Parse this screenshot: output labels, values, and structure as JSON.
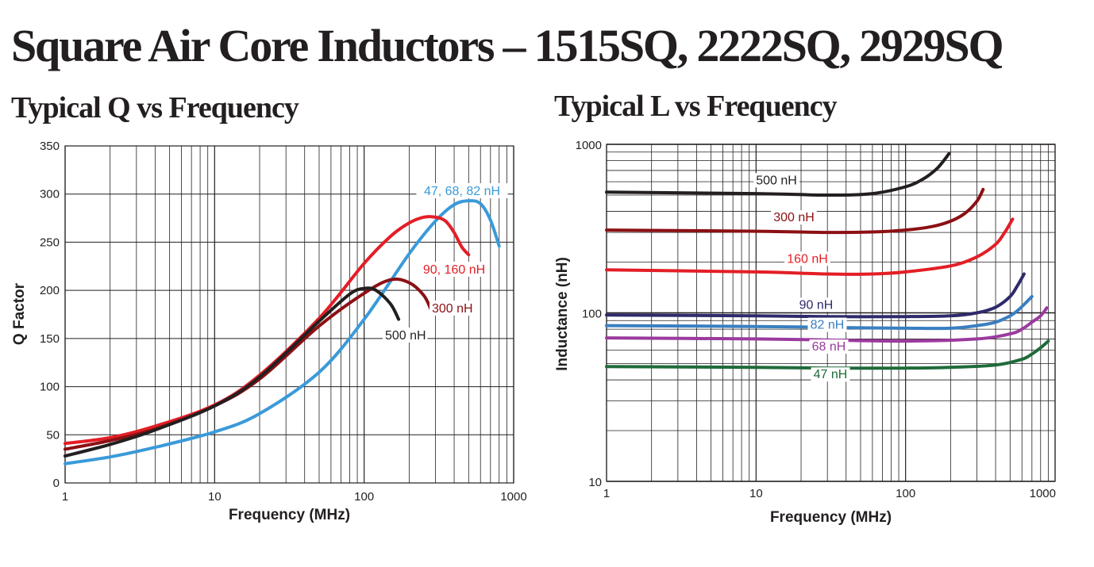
{
  "page": {
    "title": "Square Air Core Inductors – 1515SQ, 2222SQ, 2929SQ",
    "q_title": "Typical Q vs Frequency",
    "l_title": "Typical L vs Frequency"
  },
  "chart_data": [
    {
      "type": "line",
      "title": "Typical Q vs Frequency",
      "xlabel": "Frequency (MHz)",
      "ylabel": "Q Factor",
      "xscale": "log",
      "xlim": [
        1,
        1000
      ],
      "ylim": [
        0,
        350
      ],
      "xticks": [
        "1",
        "10",
        "100",
        "1000"
      ],
      "yticks": [
        "0",
        "50",
        "100",
        "150",
        "200",
        "250",
        "300",
        "350"
      ],
      "grid": true,
      "series": [
        {
          "name": "47, 68, 82 nH",
          "color": "#3a9ad9",
          "x": [
            1,
            2,
            4,
            10,
            20,
            50,
            100,
            200,
            300,
            400,
            500,
            600,
            700,
            800
          ],
          "y": [
            20,
            27,
            37,
            53,
            72,
            115,
            170,
            238,
            272,
            289,
            293,
            290,
            273,
            246
          ]
        },
        {
          "name": "90, 160 nH",
          "color": "#e31e26",
          "x": [
            1,
            2,
            4,
            10,
            20,
            50,
            100,
            150,
            200,
            250,
            300,
            350,
            400,
            450,
            500
          ],
          "y": [
            41,
            47,
            59,
            81,
            112,
            171,
            228,
            256,
            270,
            276,
            276,
            272,
            260,
            245,
            237
          ]
        },
        {
          "name": "300 nH",
          "color": "#8b1014",
          "x": [
            1,
            2,
            4,
            10,
            20,
            50,
            100,
            150,
            200,
            250,
            280
          ],
          "y": [
            35,
            44,
            56,
            80,
            108,
            163,
            197,
            211,
            208,
            195,
            180
          ]
        },
        {
          "name": "500 nH",
          "color": "#231f20",
          "x": [
            1,
            2,
            4,
            10,
            20,
            50,
            80,
            100,
            120,
            150,
            170
          ],
          "y": [
            28,
            40,
            55,
            80,
            110,
            168,
            196,
            202,
            200,
            186,
            170
          ]
        }
      ]
    },
    {
      "type": "line",
      "title": "Typical L vs Frequency",
      "xlabel": "Frequency (MHz)",
      "ylabel": "Inductance (nH)",
      "xscale": "log",
      "yscale": "log",
      "xlim": [
        1,
        1000
      ],
      "ylim": [
        10,
        1000
      ],
      "xticks": [
        "1",
        "10",
        "100",
        "1000"
      ],
      "yticks": [
        "10",
        "100",
        "1000"
      ],
      "grid": true,
      "series": [
        {
          "name": "500 nH",
          "color": "#231f20",
          "x": [
            1,
            10,
            30,
            60,
            100,
            130,
            160,
            180,
            195
          ],
          "y": [
            520,
            510,
            500,
            510,
            560,
            620,
            710,
            800,
            880
          ]
        },
        {
          "name": "300 nH",
          "color": "#8b1014",
          "x": [
            1,
            10,
            30,
            60,
            100,
            150,
            200,
            250,
            300,
            330
          ],
          "y": [
            310,
            305,
            300,
            302,
            310,
            325,
            350,
            390,
            460,
            540
          ]
        },
        {
          "name": "160 nH",
          "color": "#e31e26",
          "x": [
            1,
            10,
            30,
            60,
            100,
            200,
            300,
            400,
            460,
            520
          ],
          "y": [
            180,
            175,
            170,
            170,
            175,
            190,
            215,
            255,
            300,
            360
          ]
        },
        {
          "name": "90 nH",
          "color": "#2e2a6b",
          "x": [
            1,
            10,
            30,
            100,
            200,
            300,
            400,
            500,
            560,
            620
          ],
          "y": [
            97,
            96,
            95,
            95,
            96,
            100,
            108,
            125,
            145,
            170
          ]
        },
        {
          "name": "82 nH",
          "color": "#3a7fc1",
          "x": [
            1,
            10,
            30,
            100,
            200,
            300,
            400,
            500,
            560,
            620,
            700
          ],
          "y": [
            84,
            83,
            82,
            81,
            81,
            84,
            88,
            96,
            103,
            112,
            125
          ]
        },
        {
          "name": "68 nH",
          "color": "#9b3a9e",
          "x": [
            1,
            10,
            30,
            100,
            300,
            500,
            600,
            700,
            800,
            880
          ],
          "y": [
            71,
            70,
            69,
            68,
            70,
            75,
            80,
            88,
            96,
            107
          ]
        },
        {
          "name": "47 nH",
          "color": "#1f6b3a",
          "x": [
            1,
            10,
            30,
            100,
            200,
            400,
            600,
            700,
            800,
            900
          ],
          "y": [
            48,
            47.5,
            47,
            47,
            47.5,
            49,
            53,
            57,
            62,
            68
          ]
        }
      ]
    }
  ]
}
